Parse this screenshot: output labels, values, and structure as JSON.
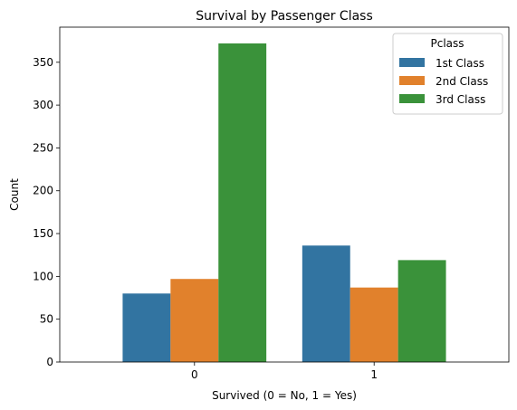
{
  "chart_data": {
    "type": "bar",
    "title": "Survival by Passenger Class",
    "xlabel": "Survived (0 = No, 1 = Yes)",
    "ylabel": "Count",
    "categories": [
      "0",
      "1"
    ],
    "series": [
      {
        "name": "1st Class",
        "values": [
          80,
          136
        ],
        "color": "#3274a1"
      },
      {
        "name": "2nd Class",
        "values": [
          97,
          87
        ],
        "color": "#e1812c"
      },
      {
        "name": "3rd Class",
        "values": [
          372,
          119
        ],
        "color": "#3a923a"
      }
    ],
    "ylim": [
      0,
      391
    ],
    "yticks": [
      0,
      50,
      100,
      150,
      200,
      250,
      300,
      350
    ],
    "legend": {
      "title": "Pclass",
      "placement": "top-right"
    },
    "grid": false
  }
}
